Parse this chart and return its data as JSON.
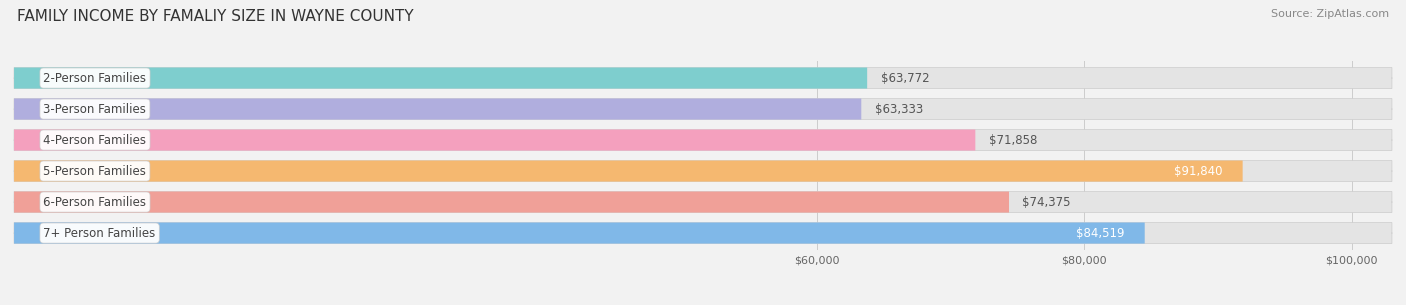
{
  "title": "FAMILY INCOME BY FAMALIY SIZE IN WAYNE COUNTY",
  "source": "Source: ZipAtlas.com",
  "categories": [
    "2-Person Families",
    "3-Person Families",
    "4-Person Families",
    "5-Person Families",
    "6-Person Families",
    "7+ Person Families"
  ],
  "values": [
    63772,
    63333,
    71858,
    91840,
    74375,
    84519
  ],
  "bar_colors": [
    "#7ecece",
    "#b0aede",
    "#f4a0be",
    "#f5b870",
    "#f0a098",
    "#80b8e8"
  ],
  "value_labels": [
    "$63,772",
    "$63,333",
    "$71,858",
    "$91,840",
    "$74,375",
    "$84,519"
  ],
  "value_inside": [
    false,
    false,
    false,
    true,
    false,
    true
  ],
  "xmin": 0,
  "xmax": 103000,
  "xticks": [
    60000,
    80000,
    100000
  ],
  "xticklabels": [
    "$60,000",
    "$80,000",
    "$100,000"
  ],
  "background_color": "#f2f2f2",
  "bar_bg_color": "#e4e4e4",
  "title_fontsize": 11,
  "label_fontsize": 8.5,
  "value_fontsize": 8.5,
  "source_fontsize": 8
}
